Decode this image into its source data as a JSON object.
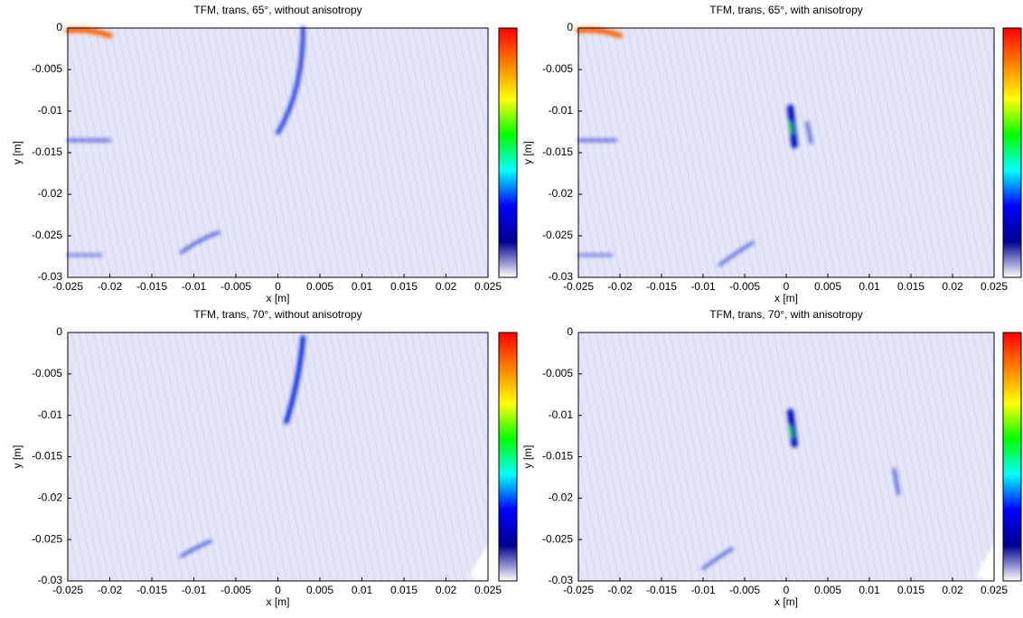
{
  "chart_data": [
    {
      "type": "image",
      "title": "TFM, trans, 65°, without anisotropy",
      "xlabel": "x [m]",
      "ylabel": "y [m]",
      "xlim": [
        -0.025,
        0.025
      ],
      "ylim": [
        -0.03,
        0
      ],
      "xticks": [
        -0.025,
        -0.02,
        -0.015,
        -0.01,
        -0.005,
        0,
        0.005,
        0.01,
        0.015,
        0.02,
        0.025
      ],
      "yticks": [
        0,
        -0.005,
        -0.01,
        -0.015,
        -0.02,
        -0.025,
        -0.03
      ],
      "colormap": "jet",
      "colorbar": true
    },
    {
      "type": "image",
      "title": "TFM, trans, 65°, with anisotropy",
      "xlabel": "x [m]",
      "ylabel": "y [m]",
      "xlim": [
        -0.025,
        0.025
      ],
      "ylim": [
        -0.03,
        0
      ],
      "xticks": [
        -0.025,
        -0.02,
        -0.015,
        -0.01,
        -0.005,
        0,
        0.005,
        0.01,
        0.015,
        0.02,
        0.025
      ],
      "yticks": [
        0,
        -0.005,
        -0.01,
        -0.015,
        -0.02,
        -0.025,
        -0.03
      ],
      "colormap": "jet",
      "colorbar": true
    },
    {
      "type": "image",
      "title": "TFM, trans, 70°, without anisotropy",
      "xlabel": "x [m]",
      "ylabel": "y [m]",
      "xlim": [
        -0.025,
        0.025
      ],
      "ylim": [
        -0.03,
        0
      ],
      "xticks": [
        -0.025,
        -0.02,
        -0.015,
        -0.01,
        -0.005,
        0,
        0.005,
        0.01,
        0.015,
        0.02,
        0.025
      ],
      "yticks": [
        0,
        -0.005,
        -0.01,
        -0.015,
        -0.02,
        -0.025,
        -0.03
      ],
      "colormap": "jet",
      "colorbar": true
    },
    {
      "type": "image",
      "title": "TFM, trans, 70°, with anisotropy",
      "xlabel": "x [m]",
      "ylabel": "y [m]",
      "xlim": [
        -0.025,
        0.025
      ],
      "ylim": [
        -0.03,
        0
      ],
      "xticks": [
        -0.025,
        -0.02,
        -0.015,
        -0.01,
        -0.005,
        0,
        0.005,
        0.01,
        0.015,
        0.02,
        0.025
      ],
      "yticks": [
        0,
        -0.005,
        -0.01,
        -0.015,
        -0.02,
        -0.025,
        -0.03
      ],
      "colormap": "jet",
      "colorbar": true
    }
  ]
}
